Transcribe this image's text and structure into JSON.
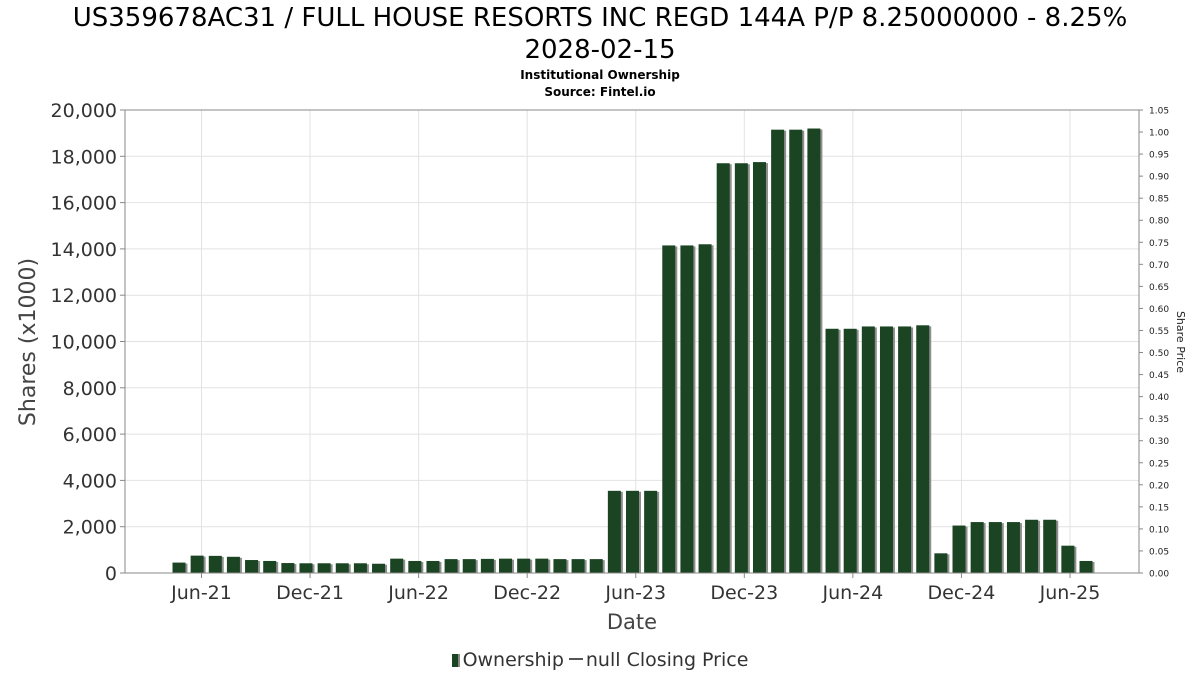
{
  "chart_data": {
    "type": "bar",
    "title_line1": "US359678AC31 / FULL HOUSE RESORTS INC REGD 144A P/P 8.25000000 - 8.25%",
    "title_line2": "2028-02-15",
    "subtitle1": "Institutional Ownership",
    "subtitle2": "Source: Fintel.io",
    "xlabel": "Date",
    "ylabel": "Shares (x1000)",
    "y2label": "Share Price",
    "ylim": [
      0,
      20000
    ],
    "y_ticks": [
      "0",
      "2,000",
      "4,000",
      "6,000",
      "8,000",
      "10,000",
      "12,000",
      "14,000",
      "16,000",
      "18,000",
      "20,000"
    ],
    "y2lim": [
      0,
      1.05
    ],
    "y2_ticks": [
      "0.00",
      "0.05",
      "0.10",
      "0.15",
      "0.20",
      "0.25",
      "0.30",
      "0.35",
      "0.40",
      "0.45",
      "0.50",
      "0.55",
      "0.60",
      "0.65",
      "0.70",
      "0.75",
      "0.80",
      "0.85",
      "0.90",
      "0.95",
      "1.00",
      "1.05"
    ],
    "x_ticks": [
      "Jun-21",
      "Dec-21",
      "Jun-22",
      "Dec-22",
      "Jun-23",
      "Dec-23",
      "Jun-24",
      "Dec-24",
      "Jun-25"
    ],
    "grid": true,
    "legend_position": "bottom",
    "series": [
      {
        "name": "Ownership",
        "color": "#1b4423",
        "values": [
          450,
          750,
          740,
          700,
          560,
          520,
          430,
          420,
          420,
          420,
          420,
          400,
          620,
          520,
          520,
          600,
          600,
          610,
          620,
          620,
          620,
          600,
          600,
          600,
          3550,
          3550,
          3550,
          14150,
          14150,
          14200,
          17700,
          17700,
          17750,
          19150,
          19150,
          19200,
          10550,
          10550,
          10650,
          10650,
          10650,
          10700,
          850,
          2050,
          2200,
          2200,
          2200,
          2300,
          2300,
          1180,
          520
        ]
      }
    ],
    "legend": {
      "ownership_label": "Ownership",
      "price_label": "null Closing Price"
    }
  }
}
